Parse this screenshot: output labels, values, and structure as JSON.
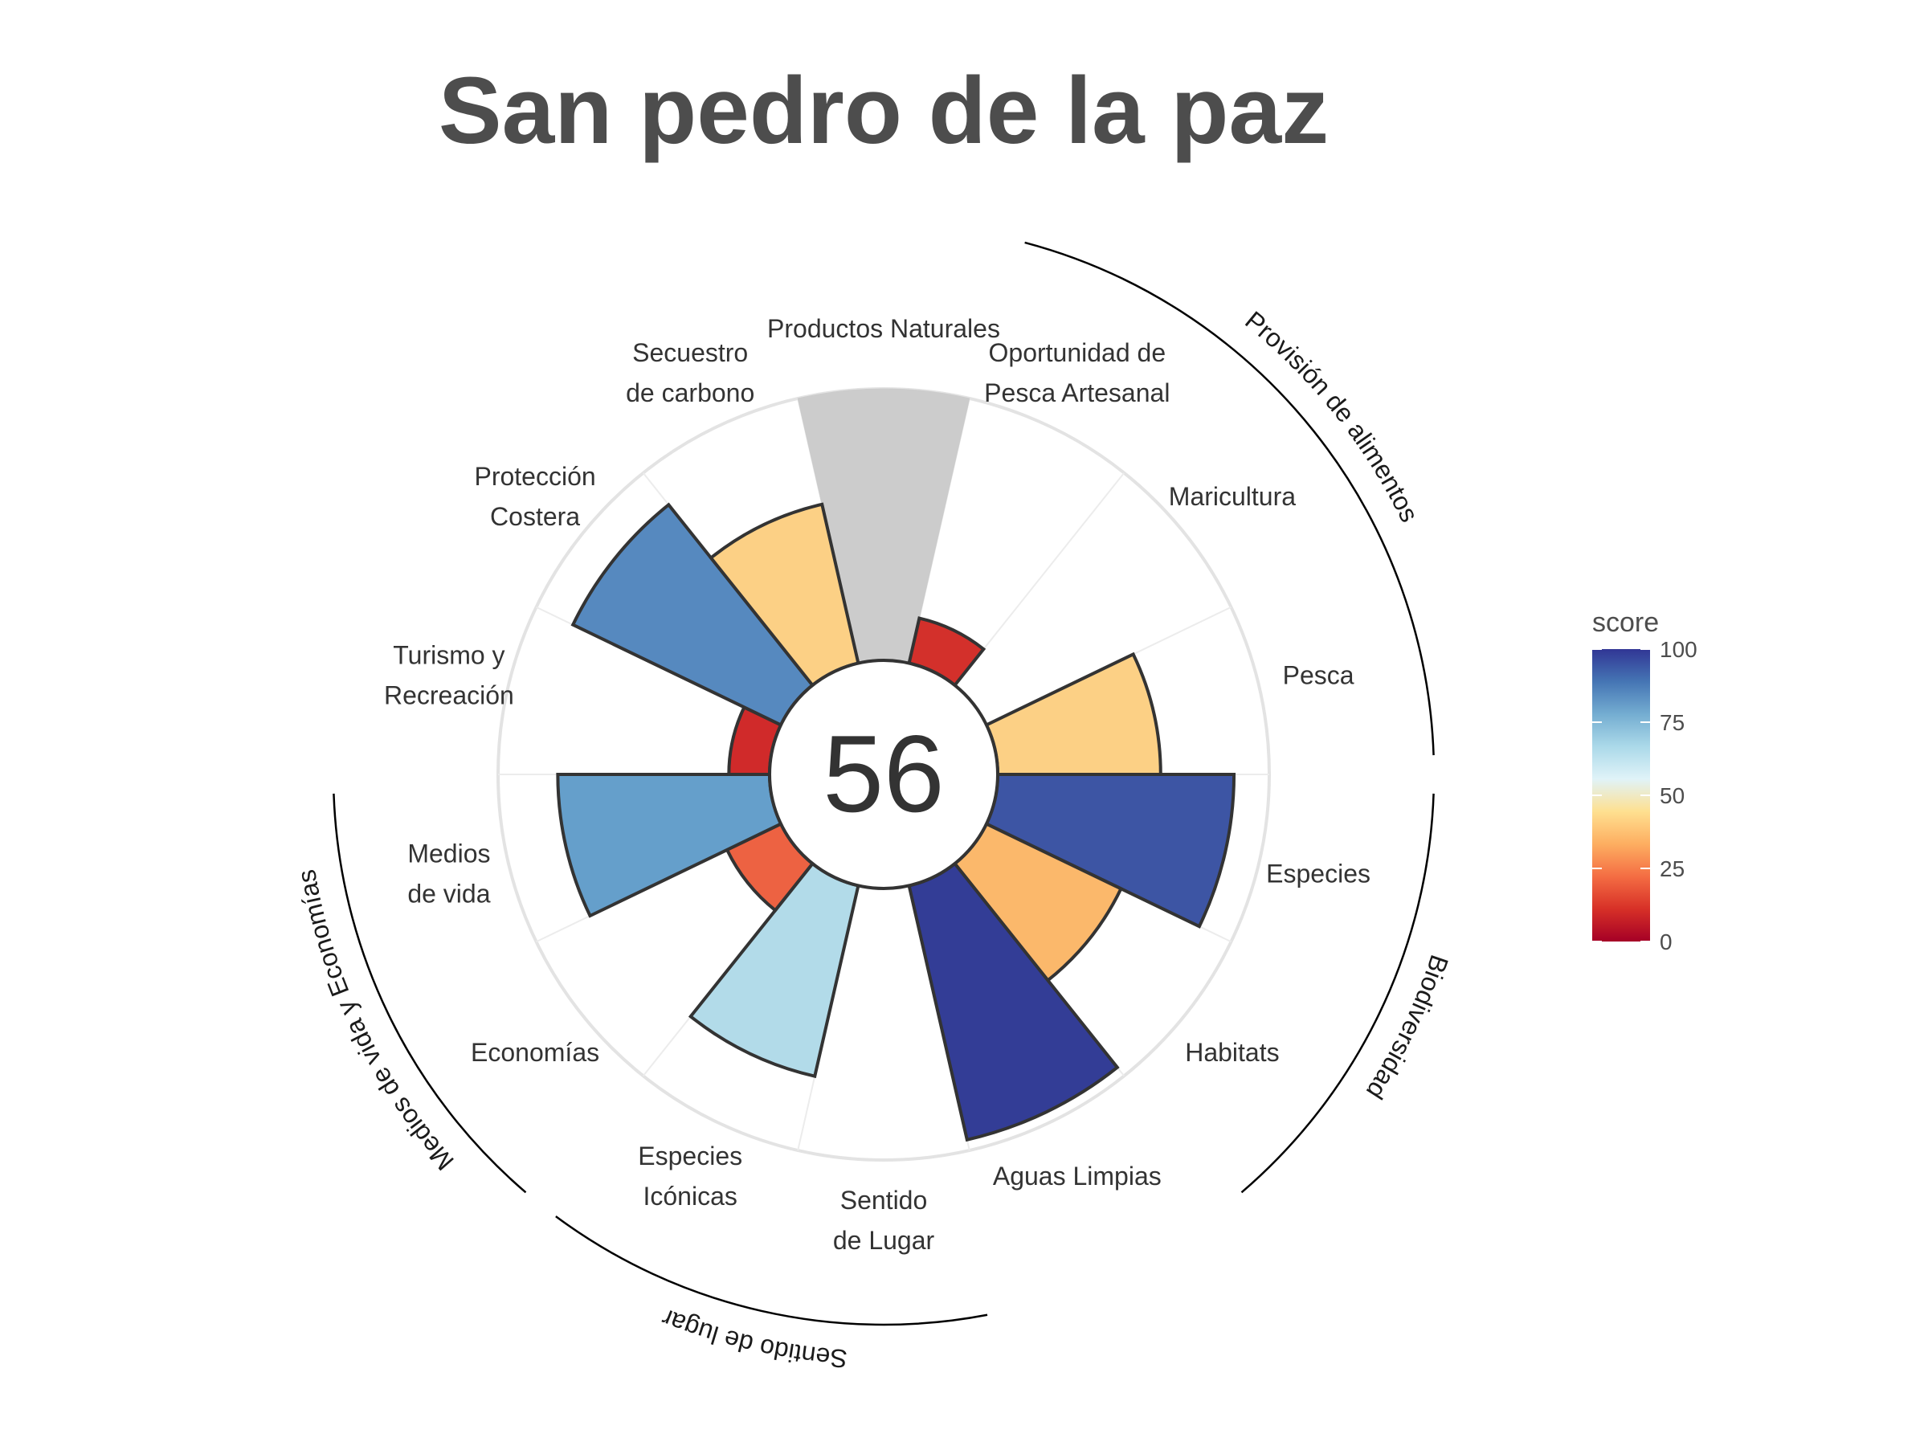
{
  "title": "San pedro de la paz",
  "center_score": "56",
  "legend": {
    "title": "score",
    "ticks": [
      "100",
      "75",
      "50",
      "25",
      "0"
    ],
    "tick_values": [
      100,
      75,
      50,
      25,
      0
    ],
    "colors": [
      "#313695",
      "#4575b4",
      "#74add1",
      "#abd9e9",
      "#e0f3f8",
      "#fee090",
      "#fdae61",
      "#f46d43",
      "#d73027",
      "#a50026"
    ]
  },
  "chart_data": {
    "type": "bar",
    "coordinate_system": "polar",
    "title": "San pedro de la paz",
    "center_label": "56",
    "ylim": [
      0,
      100
    ],
    "goals": [
      {
        "label": [
          "Productos Naturales"
        ],
        "value": 100,
        "na": true,
        "color": "#cccccc"
      },
      {
        "label": [
          "Oportunidad de",
          "Pesca Artesanal"
        ],
        "value": 17,
        "color": "#d3302b"
      },
      {
        "label": [
          "Maricultura"
        ],
        "value": 0,
        "color": "#a50026"
      },
      {
        "label": [
          "Pesca"
        ],
        "value": 60,
        "color": "#fcd085"
      },
      {
        "label": [
          "Especies"
        ],
        "value": 87,
        "color": "#3d55a4"
      },
      {
        "label": [
          "Habitats"
        ],
        "value": 55,
        "color": "#fbb86b"
      },
      {
        "label": [
          "Aguas Limpias"
        ],
        "value": 96,
        "color": "#333d96"
      },
      {
        "label": [
          "Sentido",
          "de Lugar"
        ],
        "value": 0,
        "color": "#a50026"
      },
      {
        "label": [
          "Especies",
          "Icónicas"
        ],
        "value": 72,
        "color": "#b2dbe9"
      },
      {
        "label": [
          "Economías"
        ],
        "value": 22,
        "color": "#ed6242"
      },
      {
        "label": [
          "Medios",
          "de vida"
        ],
        "value": 78,
        "color": "#659fcb"
      },
      {
        "label": [
          "Turismo y",
          "Recreación"
        ],
        "value": 15,
        "color": "#d02a2a"
      },
      {
        "label": [
          "Protección",
          "Costera"
        ],
        "value": 85,
        "color": "#5689bf"
      },
      {
        "label": [
          "Secuestro",
          "de carbono"
        ],
        "value": 60,
        "color": "#fcd085"
      }
    ],
    "groups": [
      {
        "name": "Provisión de alimentos",
        "goals": [
          "Oportunidad de Pesca Artesanal",
          "Maricultura",
          "Pesca"
        ]
      },
      {
        "name": "Biodiversidad",
        "goals": [
          "Especies",
          "Habitats"
        ]
      },
      {
        "name": "Sentido de lugar",
        "goals": [
          "Sentido de Lugar",
          "Especies Icónicas"
        ]
      },
      {
        "name": "Medios de vida y Economías",
        "goals": [
          "Economías",
          "Medios de vida"
        ]
      }
    ]
  }
}
